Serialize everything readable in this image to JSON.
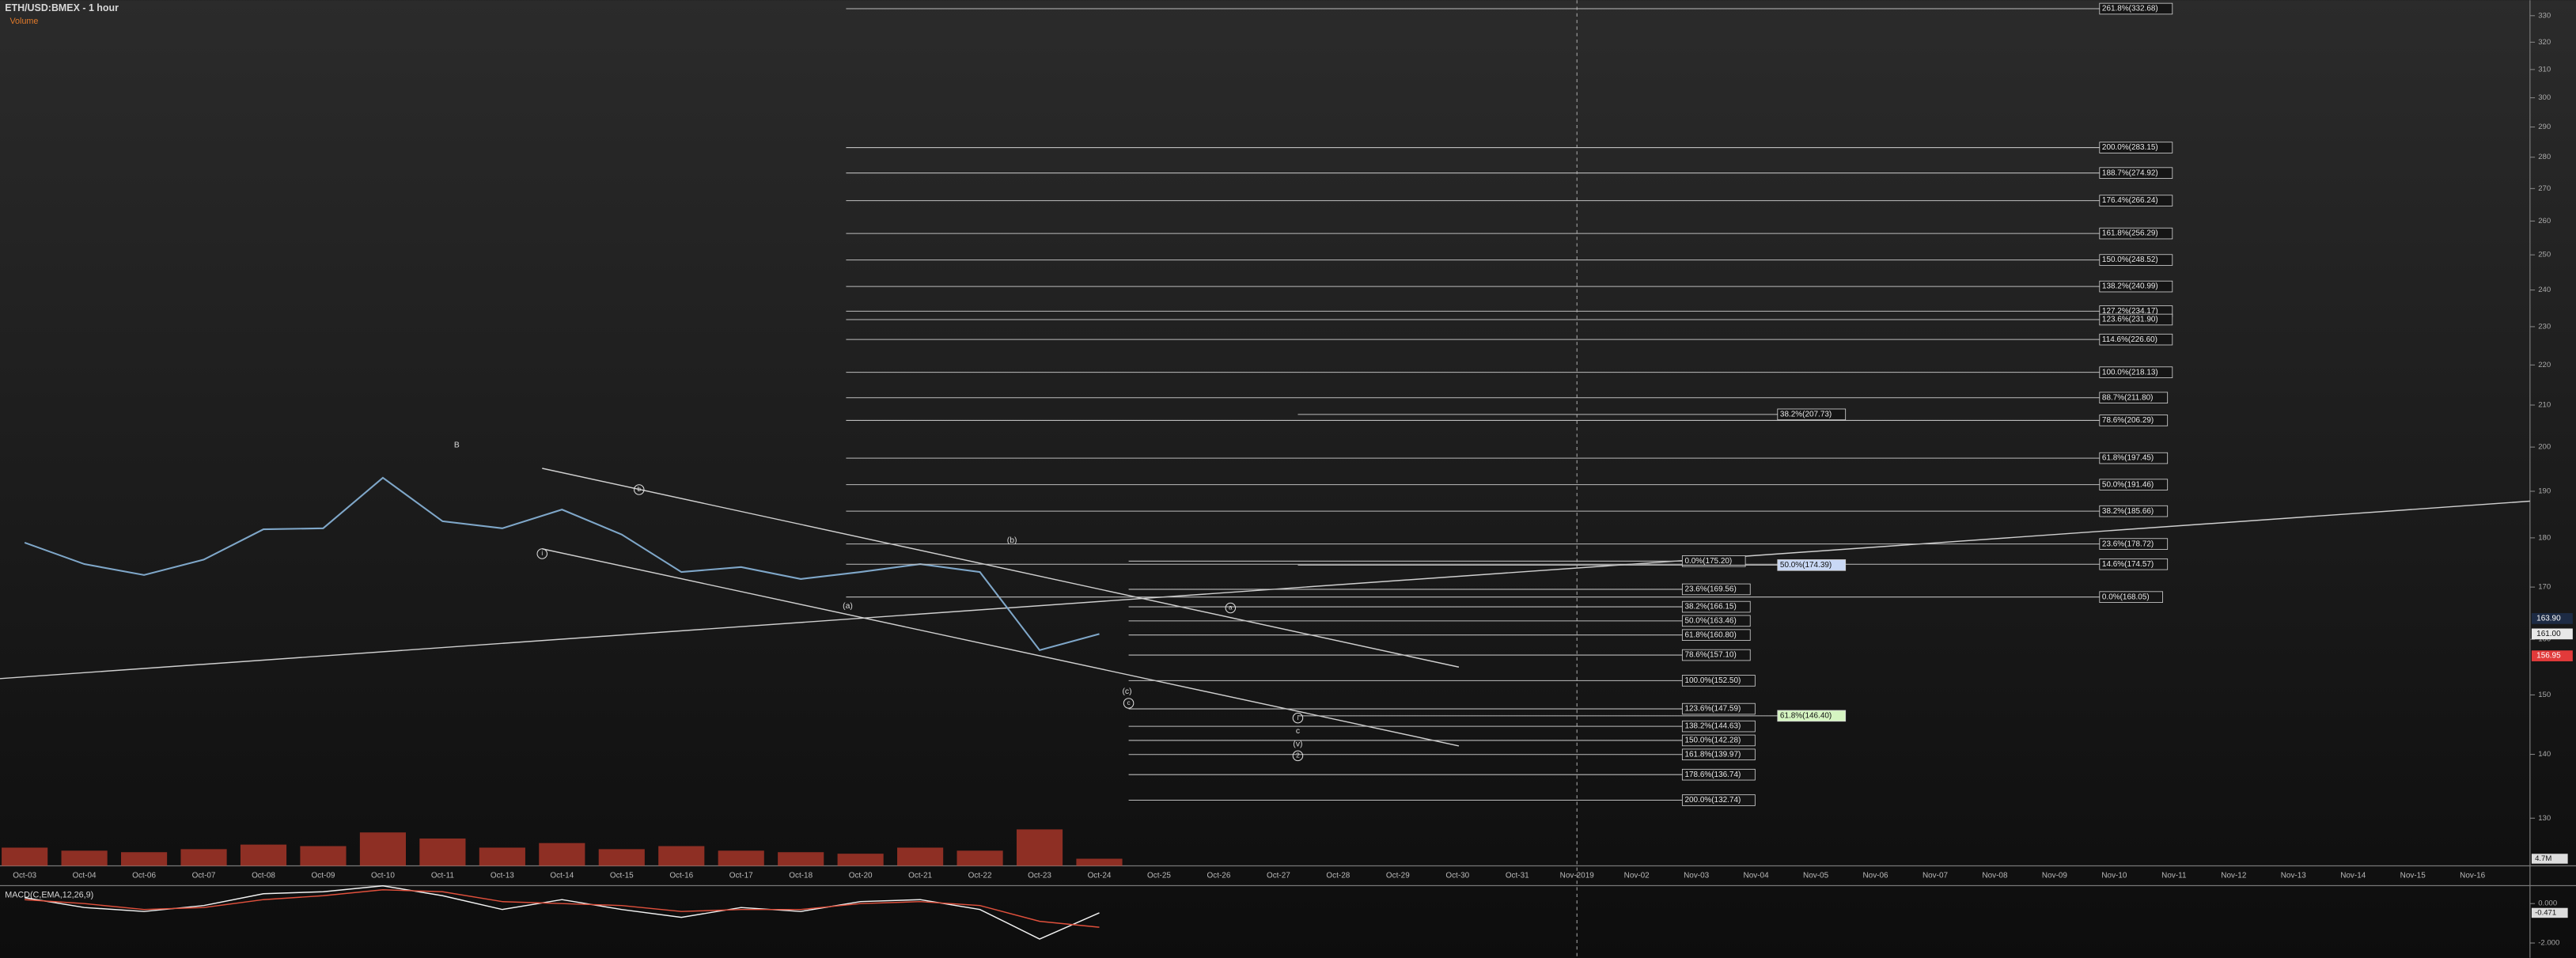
{
  "chart_data": {
    "type": "line",
    "title": "ETH/USD:BMEX - 1 hour",
    "log_scale": true,
    "ylim": [
      123,
      336
    ],
    "yticks": [
      130,
      140,
      150,
      160,
      170,
      180,
      190,
      200,
      210,
      220,
      230,
      240,
      250,
      260,
      270,
      280,
      290,
      300,
      310,
      320,
      330
    ],
    "categories": [
      "Oct-03",
      "Oct-04",
      "Oct-06",
      "Oct-07",
      "Oct-08",
      "Oct-09",
      "Oct-10",
      "Oct-11",
      "Oct-13",
      "Oct-14",
      "Oct-15",
      "Oct-16",
      "Oct-17",
      "Oct-18",
      "Oct-20",
      "Oct-21",
      "Oct-22",
      "Oct-23",
      "Oct-24",
      "Oct-25",
      "Oct-26",
      "Oct-27",
      "Oct-28",
      "Oct-29",
      "Oct-30",
      "Oct-31",
      "Nov-2019",
      "Nov-02",
      "Nov-03",
      "Nov-04",
      "Nov-05",
      "Nov-06",
      "Nov-07",
      "Nov-08",
      "Nov-09",
      "Nov-10",
      "Nov-11",
      "Nov-12",
      "Nov-13",
      "Nov-14",
      "Nov-15",
      "Nov-16"
    ],
    "series": [
      {
        "color": "#7fa7c9",
        "values": [
          179,
          174.6,
          172.4,
          175.5,
          181.8,
          182,
          193,
          183.5,
          182,
          186,
          180.7,
          173,
          174,
          171.6,
          173,
          174.6,
          173,
          158,
          161,
          null,
          null,
          null,
          null,
          null,
          null,
          null,
          null,
          null,
          null,
          null,
          null,
          null,
          null,
          null,
          null,
          null,
          null,
          null,
          null,
          null,
          null,
          null
        ]
      }
    ],
    "price_labels": [
      {
        "value": 163.9,
        "label": "163.90",
        "color": "#1d2b44"
      },
      {
        "value": 161,
        "label": "161.00",
        "color": "#e8e8e8"
      },
      {
        "value": 156.95,
        "label": "156.95",
        "color": "#e23a3a"
      }
    ],
    "volume": {
      "name": "Volume",
      "color": "#b8392b",
      "ylim": [
        0,
        40
      ],
      "values": [
        12,
        10,
        9,
        11,
        14,
        13,
        22,
        18,
        12,
        15,
        11,
        13,
        10,
        9,
        8,
        12,
        10,
        24,
        4.7,
        null,
        null,
        null,
        null,
        null,
        null,
        null,
        null,
        null,
        null,
        null,
        null,
        null,
        null,
        null,
        null,
        null,
        null,
        null,
        null,
        null,
        null,
        null
      ],
      "value_labels": [
        null,
        null,
        null,
        null,
        null,
        null,
        null,
        null,
        null,
        null,
        null,
        null,
        null,
        null,
        null,
        null,
        null,
        null,
        "4.7M",
        null,
        null,
        null,
        null,
        null,
        null,
        null,
        null,
        null,
        null,
        null,
        null,
        null,
        null,
        null,
        null,
        null,
        null,
        null,
        null,
        null,
        null,
        null
      ]
    },
    "fib_groups": [
      {
        "levels": [
          {
            "value": 332.68,
            "label": "261.8%(332.68)"
          },
          {
            "value": 283.15,
            "label": "200.0%(283.15)"
          },
          {
            "value": 274.92,
            "label": "188.7%(274.92)"
          },
          {
            "value": 266.24,
            "label": "176.4%(266.24)"
          },
          {
            "value": 256.29,
            "label": "161.8%(256.29)"
          },
          {
            "value": 248.52,
            "label": "150.0%(248.52)"
          },
          {
            "value": 240.99,
            "label": "138.2%(240.99)"
          },
          {
            "value": 234.17,
            "label": "127.2%(234.17)"
          },
          {
            "value": 231.9,
            "label": "123.6%(231.90)"
          },
          {
            "value": 226.6,
            "label": "114.6%(226.60)"
          },
          {
            "value": 218.13,
            "label": "100.0%(218.13)"
          },
          {
            "value": 211.8,
            "label": "88.7%(211.80)"
          },
          {
            "value": 206.29,
            "label": "78.6%(206.29)"
          },
          {
            "value": 197.45,
            "label": "61.8%(197.45)"
          },
          {
            "value": 191.46,
            "label": "50.0%(191.46)"
          },
          {
            "value": 185.66,
            "label": "38.2%(185.66)"
          },
          {
            "value": 178.72,
            "label": "23.6%(178.72)"
          },
          {
            "value": 174.57,
            "label": "14.6%(174.57)"
          },
          {
            "value": 168.05,
            "label": "0.0%(168.05)"
          }
        ]
      },
      {
        "levels": [
          {
            "value": 175.2,
            "label": "0.0%(175.20)"
          },
          {
            "value": 169.56,
            "label": "23.6%(169.56)"
          },
          {
            "value": 166.15,
            "label": "38.2%(166.15)"
          },
          {
            "value": 163.46,
            "label": "50.0%(163.46)"
          },
          {
            "value": 160.8,
            "label": "61.8%(160.80)"
          },
          {
            "value": 157.1,
            "label": "78.6%(157.10)"
          },
          {
            "value": 152.5,
            "label": "100.0%(152.50)"
          },
          {
            "value": 147.59,
            "label": "123.6%(147.59)"
          },
          {
            "value": 144.63,
            "label": "138.2%(144.63)"
          },
          {
            "value": 142.28,
            "label": "150.0%(142.28)"
          },
          {
            "value": 139.97,
            "label": "161.8%(139.97)"
          },
          {
            "value": 136.74,
            "label": "178.6%(136.74)"
          },
          {
            "value": 132.74,
            "label": "200.0%(132.74)"
          }
        ]
      },
      {
        "levels": [
          {
            "value": 207.73,
            "label": "38.2%(207.73)"
          },
          {
            "value": 174.39,
            "label": "50.0%(174.39)",
            "box_color": "#c9d8f5"
          },
          {
            "value": 146.4,
            "label": "61.8%(146.40)",
            "box_color": "#d6f5c2"
          }
        ]
      }
    ],
    "waves": [
      "B",
      "b",
      "i",
      "(b)",
      "(a)",
      "a",
      "(c)",
      "c",
      "i",
      "c",
      "(v)",
      "2"
    ],
    "macd": {
      "title": "MACD(C,EMA,12,26,9)",
      "ylim": [
        -2.67,
        0.83
      ],
      "yticks": [
        {
          "value": 0,
          "label": "0.000"
        },
        {
          "value": -2,
          "label": "-2.000"
        }
      ],
      "series": [
        {
          "color": "#f2f2f2",
          "values": [
            0.3,
            -0.2,
            -0.4,
            -0.1,
            0.5,
            0.6,
            0.9,
            0.4,
            -0.3,
            0.2,
            -0.3,
            -0.7,
            -0.2,
            -0.4,
            0.1,
            0.2,
            -0.3,
            -1.8,
            -0.471,
            null,
            null,
            null,
            null,
            null,
            null,
            null,
            null,
            null,
            null,
            null,
            null,
            null,
            null,
            null,
            null,
            null,
            null,
            null,
            null,
            null,
            null,
            null
          ],
          "value_labels": [
            null,
            null,
            null,
            null,
            null,
            null,
            null,
            null,
            null,
            null,
            null,
            null,
            null,
            null,
            null,
            null,
            null,
            null,
            "-0.471",
            null,
            null,
            null,
            null,
            null,
            null,
            null,
            null,
            null,
            null,
            null,
            null,
            null,
            null,
            null,
            null,
            null,
            null,
            null,
            null,
            null,
            null,
            null
          ]
        },
        {
          "color": "#e0503c",
          "values": [
            0.2,
            0,
            -0.3,
            -0.2,
            0.2,
            0.4,
            0.7,
            0.6,
            0.1,
            0,
            -0.1,
            -0.4,
            -0.3,
            -0.3,
            0,
            0.1,
            -0.1,
            -0.9,
            -1.2,
            null,
            null,
            null,
            null,
            null,
            null,
            null,
            null,
            null,
            null,
            null,
            null,
            null,
            null,
            null,
            null,
            null,
            null,
            null,
            null,
            null,
            null,
            null
          ]
        }
      ]
    }
  }
}
